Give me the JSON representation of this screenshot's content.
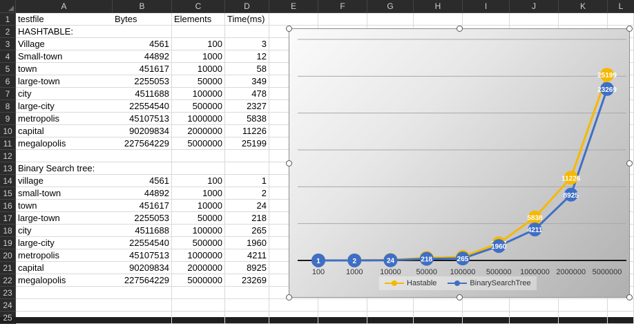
{
  "columns": [
    "A",
    "B",
    "C",
    "D",
    "E",
    "F",
    "G",
    "H",
    "I",
    "J",
    "K",
    "L"
  ],
  "rows": [
    {
      "n": "1",
      "a": "testfile",
      "b": "Bytes",
      "c": "Elements",
      "d": "Time(ms)",
      "hdr": true
    },
    {
      "n": "2",
      "a": "HASHTABLE:",
      "b": "",
      "c": "",
      "d": ""
    },
    {
      "n": "3",
      "a": "Village",
      "b": "4561",
      "c": "100",
      "d": "3"
    },
    {
      "n": "4",
      "a": "Small-town",
      "b": "44892",
      "c": "1000",
      "d": "12"
    },
    {
      "n": "5",
      "a": "town",
      "b": "451617",
      "c": "10000",
      "d": "58"
    },
    {
      "n": "6",
      "a": "large-town",
      "b": "2255053",
      "c": "50000",
      "d": "349"
    },
    {
      "n": "7",
      "a": "city",
      "b": "4511688",
      "c": "100000",
      "d": "478"
    },
    {
      "n": "8",
      "a": "large-city",
      "b": "22554540",
      "c": "500000",
      "d": "2327"
    },
    {
      "n": "9",
      "a": "metropolis",
      "b": "45107513",
      "c": "1000000",
      "d": "5838"
    },
    {
      "n": "10",
      "a": "capital",
      "b": "90209834",
      "c": "2000000",
      "d": "11226"
    },
    {
      "n": "11",
      "a": "megalopolis",
      "b": "227564229",
      "c": "5000000",
      "d": "25199"
    },
    {
      "n": "12",
      "a": "",
      "b": "",
      "c": "",
      "d": ""
    },
    {
      "n": "13",
      "a": "Binary Search tree:",
      "b": "",
      "c": "",
      "d": ""
    },
    {
      "n": "14",
      "a": "village",
      "b": "4561",
      "c": "100",
      "d": "1"
    },
    {
      "n": "15",
      "a": "small-town",
      "b": "44892",
      "c": "1000",
      "d": "2"
    },
    {
      "n": "16",
      "a": "town",
      "b": "451617",
      "c": "10000",
      "d": "24"
    },
    {
      "n": "17",
      "a": "large-town",
      "b": "2255053",
      "c": "50000",
      "d": "218"
    },
    {
      "n": "18",
      "a": "city",
      "b": "4511688",
      "c": "100000",
      "d": "265"
    },
    {
      "n": "19",
      "a": "large-city",
      "b": "22554540",
      "c": "500000",
      "d": "1960"
    },
    {
      "n": "20",
      "a": "metropolis",
      "b": "45107513",
      "c": "1000000",
      "d": "4211"
    },
    {
      "n": "21",
      "a": "capital",
      "b": "90209834",
      "c": "2000000",
      "d": "8925"
    },
    {
      "n": "22",
      "a": "megalopolis",
      "b": "227564229",
      "c": "5000000",
      "d": "23269"
    },
    {
      "n": "23",
      "a": "",
      "b": "",
      "c": "",
      "d": ""
    },
    {
      "n": "24",
      "a": "",
      "b": "",
      "c": "",
      "d": ""
    },
    {
      "n": "25",
      "a": "",
      "b": "",
      "c": "",
      "d": ""
    }
  ],
  "chart_data": {
    "type": "line",
    "categories": [
      "100",
      "1000",
      "10000",
      "50000",
      "100000",
      "500000",
      "1000000",
      "2000000",
      "5000000"
    ],
    "series": [
      {
        "name": "Hastable",
        "color": "#f5b800",
        "values": [
          3,
          12,
          58,
          349,
          478,
          2327,
          5838,
          11226,
          25199
        ]
      },
      {
        "name": "BinarySearchTree",
        "color": "#3f6fc4",
        "values": [
          1,
          2,
          24,
          218,
          265,
          1960,
          4211,
          8925,
          23269
        ]
      }
    ],
    "ylim": [
      0,
      30000
    ],
    "grid": true,
    "legend": "bottom"
  }
}
